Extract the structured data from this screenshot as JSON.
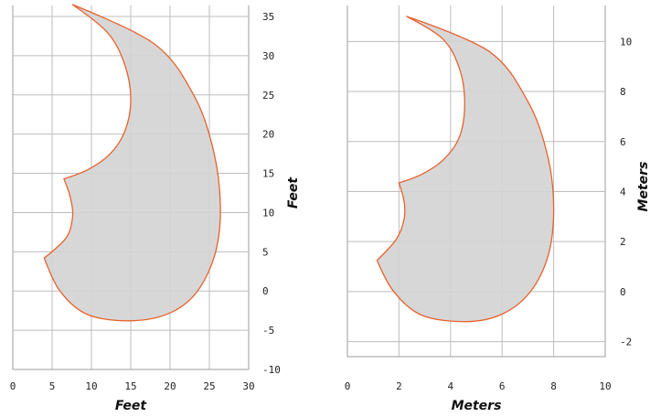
{
  "colors": {
    "outline": "#E8612C",
    "fill": "#D3D3D3",
    "grid": "#BDBDBD",
    "axis": "#9E9E9E"
  },
  "chart_data": [
    {
      "type": "area",
      "title": "",
      "xlabel": "Feet",
      "ylabel": "Feet",
      "xlim": [
        0,
        30
      ],
      "ylim": [
        -10,
        35
      ],
      "xticks": [
        "0",
        "5",
        "10",
        "15",
        "20",
        "25",
        "30"
      ],
      "yticks": [
        "-10",
        "-5",
        "0",
        "5",
        "10",
        "15",
        "20",
        "25",
        "30",
        "35"
      ],
      "grid": true,
      "y_axis_side": "right",
      "series": [
        {
          "x": [
            7.6,
            12.0,
            14.2,
            15.0,
            14.3,
            12.4,
            9.6,
            6.5,
            7.3,
            7.6,
            6.8,
            4.0,
            6.0,
            9.5,
            15.0,
            20.0,
            23.5,
            25.8,
            26.4,
            25.5,
            23.0,
            18.0,
            7.6
          ],
          "y": [
            36.5,
            33.0,
            29.0,
            24.5,
            20.5,
            17.5,
            15.5,
            14.3,
            12.0,
            9.5,
            6.8,
            4.2,
            0.0,
            -3.0,
            -3.8,
            -2.8,
            0.0,
            5.0,
            11.0,
            18.0,
            25.0,
            31.5,
            36.5
          ]
        }
      ]
    },
    {
      "type": "area",
      "title": "",
      "xlabel": "Meters",
      "ylabel": "Meters",
      "xlim": [
        0,
        10
      ],
      "ylim": [
        -2.6,
        11
      ],
      "xticks": [
        "0",
        "2",
        "4",
        "6",
        "8",
        "10"
      ],
      "yticks": [
        "-2",
        "0",
        "2",
        "4",
        "6",
        "8",
        "10"
      ],
      "grid": true,
      "y_axis_side": "right",
      "series": [
        {
          "x": [
            2.3,
            3.7,
            4.35,
            4.55,
            4.35,
            3.75,
            2.9,
            2.0,
            2.2,
            2.2,
            1.9,
            1.15,
            1.8,
            2.9,
            4.6,
            6.0,
            7.1,
            7.8,
            8.0,
            7.75,
            7.0,
            5.5,
            2.3
          ],
          "y": [
            11.0,
            10.1,
            8.9,
            7.5,
            6.2,
            5.3,
            4.7,
            4.35,
            3.6,
            2.9,
            2.1,
            1.25,
            0.0,
            -0.95,
            -1.2,
            -0.9,
            0.0,
            1.5,
            3.4,
            5.5,
            7.6,
            9.6,
            11.0
          ]
        }
      ]
    }
  ]
}
